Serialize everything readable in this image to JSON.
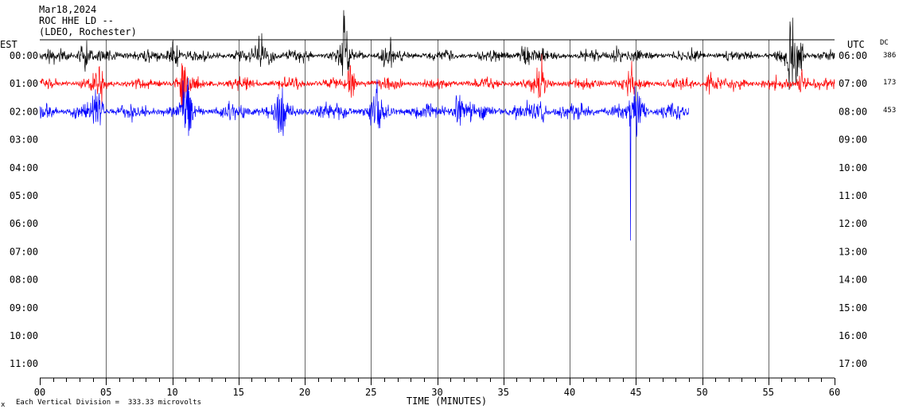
{
  "header": {
    "date": "Mar18,2024",
    "station": "ROC HHE LD --",
    "network": "(LDEO, Rochester)"
  },
  "left_axis_title": "EST",
  "right_axis_title": "UTC",
  "dc_label": "DC",
  "dc_values": [
    "386",
    "173",
    "453"
  ],
  "footer": {
    "mark": "x",
    "scale_text": "Each Vertical Division =  333.33 microvolts"
  },
  "colors": {
    "trace_colors": [
      "#000000",
      "#ff0000",
      "#0000ff"
    ],
    "grid": "#000000",
    "background": "#ffffff"
  },
  "chart_data": {
    "type": "line",
    "title": "Mar18,2024 ROC HHE LD -- (LDEO, Rochester)",
    "xlabel": "TIME (MINUTES)",
    "ylabel_left": "EST",
    "ylabel_right": "UTC",
    "xlim": [
      0,
      60
    ],
    "x_ticks": [
      "00",
      "05",
      "10",
      "15",
      "20",
      "25",
      "30",
      "35",
      "40",
      "45",
      "50",
      "55",
      "60"
    ],
    "y_labels_left": [
      "00:00",
      "01:00",
      "02:00",
      "03:00",
      "04:00",
      "05:00",
      "06:00",
      "07:00",
      "08:00",
      "09:00",
      "10:00",
      "11:00"
    ],
    "y_labels_right": [
      "06:00",
      "07:00",
      "08:00",
      "09:00",
      "10:00",
      "11:00",
      "12:00",
      "13:00",
      "14:00",
      "15:00",
      "16:00",
      "17:00"
    ],
    "grid": true,
    "series": [
      {
        "name": "00:00",
        "color": "#000000",
        "x_range": [
          0,
          60
        ],
        "noise_amplitude": 0.25,
        "bursts": [
          {
            "x": 3.3,
            "amplitude": 0.9
          },
          {
            "x": 10.1,
            "amplitude": 1.3
          },
          {
            "x": 16.7,
            "amplitude": 1.1
          },
          {
            "x": 17.3,
            "amplitude": 1.0
          },
          {
            "x": 23.0,
            "amplitude": 1.5
          },
          {
            "x": 26.2,
            "amplitude": 0.8
          },
          {
            "x": 36.5,
            "amplitude": 0.9
          },
          {
            "x": 43.6,
            "amplitude": 1.1
          },
          {
            "x": 56.8,
            "amplitude": 1.6
          },
          {
            "x": 57.3,
            "amplitude": 1.2
          }
        ]
      },
      {
        "name": "01:00",
        "color": "#ff0000",
        "x_range": [
          0,
          60
        ],
        "noise_amplitude": 0.25,
        "bursts": [
          {
            "x": 4.5,
            "amplitude": 0.8
          },
          {
            "x": 10.8,
            "amplitude": 1.1
          },
          {
            "x": 23.5,
            "amplitude": 0.9
          },
          {
            "x": 37.8,
            "amplitude": 0.9
          },
          {
            "x": 44.5,
            "amplitude": 0.7
          },
          {
            "x": 50.6,
            "amplitude": 0.9
          },
          {
            "x": 57.6,
            "amplitude": 1.4
          }
        ]
      },
      {
        "name": "02:00",
        "color": "#0000ff",
        "x_range": [
          0,
          49
        ],
        "noise_amplitude": 0.35,
        "bursts": [
          {
            "x": 4.4,
            "amplitude": 1.0
          },
          {
            "x": 11.1,
            "amplitude": 1.3
          },
          {
            "x": 18.2,
            "amplitude": 0.9
          },
          {
            "x": 25.3,
            "amplitude": 1.0
          },
          {
            "x": 31.6,
            "amplitude": 1.3
          },
          {
            "x": 37.9,
            "amplitude": 0.9
          },
          {
            "x": 44.9,
            "amplitude": 1.0
          },
          {
            "x": 45.4,
            "amplitude": 1.0
          }
        ],
        "spikes": [
          {
            "x": 44.6,
            "y_min_row": 6.6
          }
        ]
      }
    ]
  }
}
